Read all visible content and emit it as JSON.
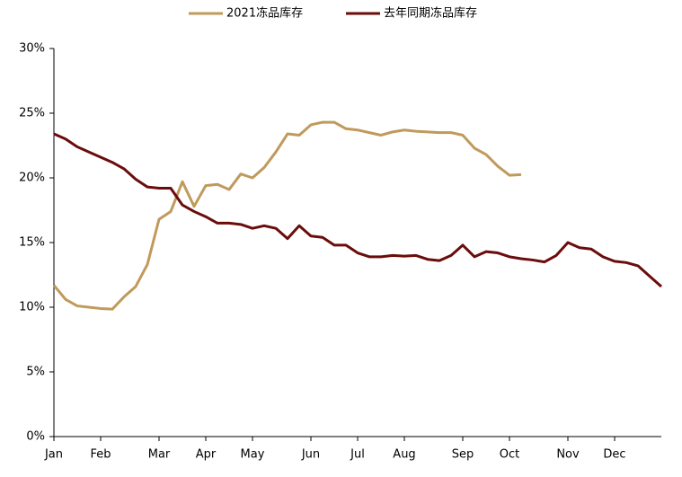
{
  "chart_data": {
    "type": "line",
    "categories": [
      "Jan",
      null,
      null,
      null,
      "Feb",
      null,
      null,
      null,
      null,
      "Mar",
      null,
      null,
      null,
      "Apr",
      null,
      null,
      null,
      "May",
      null,
      null,
      null,
      null,
      "Jun",
      null,
      null,
      null,
      "Jul",
      null,
      null,
      null,
      "Aug",
      null,
      null,
      null,
      null,
      "Sep",
      null,
      null,
      null,
      "Oct",
      null,
      null,
      null,
      null,
      "Nov",
      null,
      null,
      null,
      "Dec",
      null,
      null,
      null,
      null
    ],
    "series": [
      {
        "name": "2021冻品库存",
        "color": "#c09a5b",
        "values": [
          11.7,
          10.6,
          10.1,
          10.0,
          9.9,
          9.85,
          10.8,
          11.6,
          13.3,
          16.8,
          17.4,
          19.7,
          17.8,
          19.4,
          19.5,
          19.1,
          20.3,
          20.0,
          20.8,
          22.0,
          23.4,
          23.3,
          24.1,
          24.3,
          24.3,
          23.8,
          23.7,
          23.5,
          23.3,
          23.55,
          23.7,
          23.6,
          23.55,
          23.5,
          23.5,
          23.3,
          22.3,
          21.8,
          20.9,
          20.2,
          20.25,
          null,
          null,
          null,
          null,
          null,
          null,
          null,
          null,
          null,
          null,
          null,
          null
        ]
      },
      {
        "name": "去年同期冻品库存",
        "color": "#6b0c0c",
        "values": [
          23.4,
          23.0,
          22.4,
          22.0,
          21.6,
          21.2,
          20.7,
          19.9,
          19.3,
          19.2,
          19.2,
          17.9,
          17.4,
          17.0,
          16.5,
          16.5,
          16.4,
          16.1,
          16.3,
          16.1,
          15.3,
          16.3,
          15.5,
          15.4,
          14.8,
          14.8,
          14.2,
          13.9,
          13.9,
          14.0,
          13.95,
          14.0,
          13.7,
          13.6,
          14.0,
          14.8,
          13.9,
          14.3,
          14.2,
          13.9,
          13.75,
          13.65,
          13.5,
          14.0,
          15.0,
          14.6,
          14.5,
          13.9,
          13.55,
          13.45,
          13.2,
          12.4,
          11.6
        ]
      }
    ],
    "ylim": [
      0,
      30
    ],
    "yticks": [
      {
        "value": 0,
        "label": "0%"
      },
      {
        "value": 5,
        "label": "5%"
      },
      {
        "value": 10,
        "label": "10%"
      },
      {
        "value": 15,
        "label": "15%"
      },
      {
        "value": 20,
        "label": "20%"
      },
      {
        "value": 25,
        "label": "25%"
      },
      {
        "value": 30,
        "label": "30%"
      }
    ],
    "legend": "top"
  }
}
